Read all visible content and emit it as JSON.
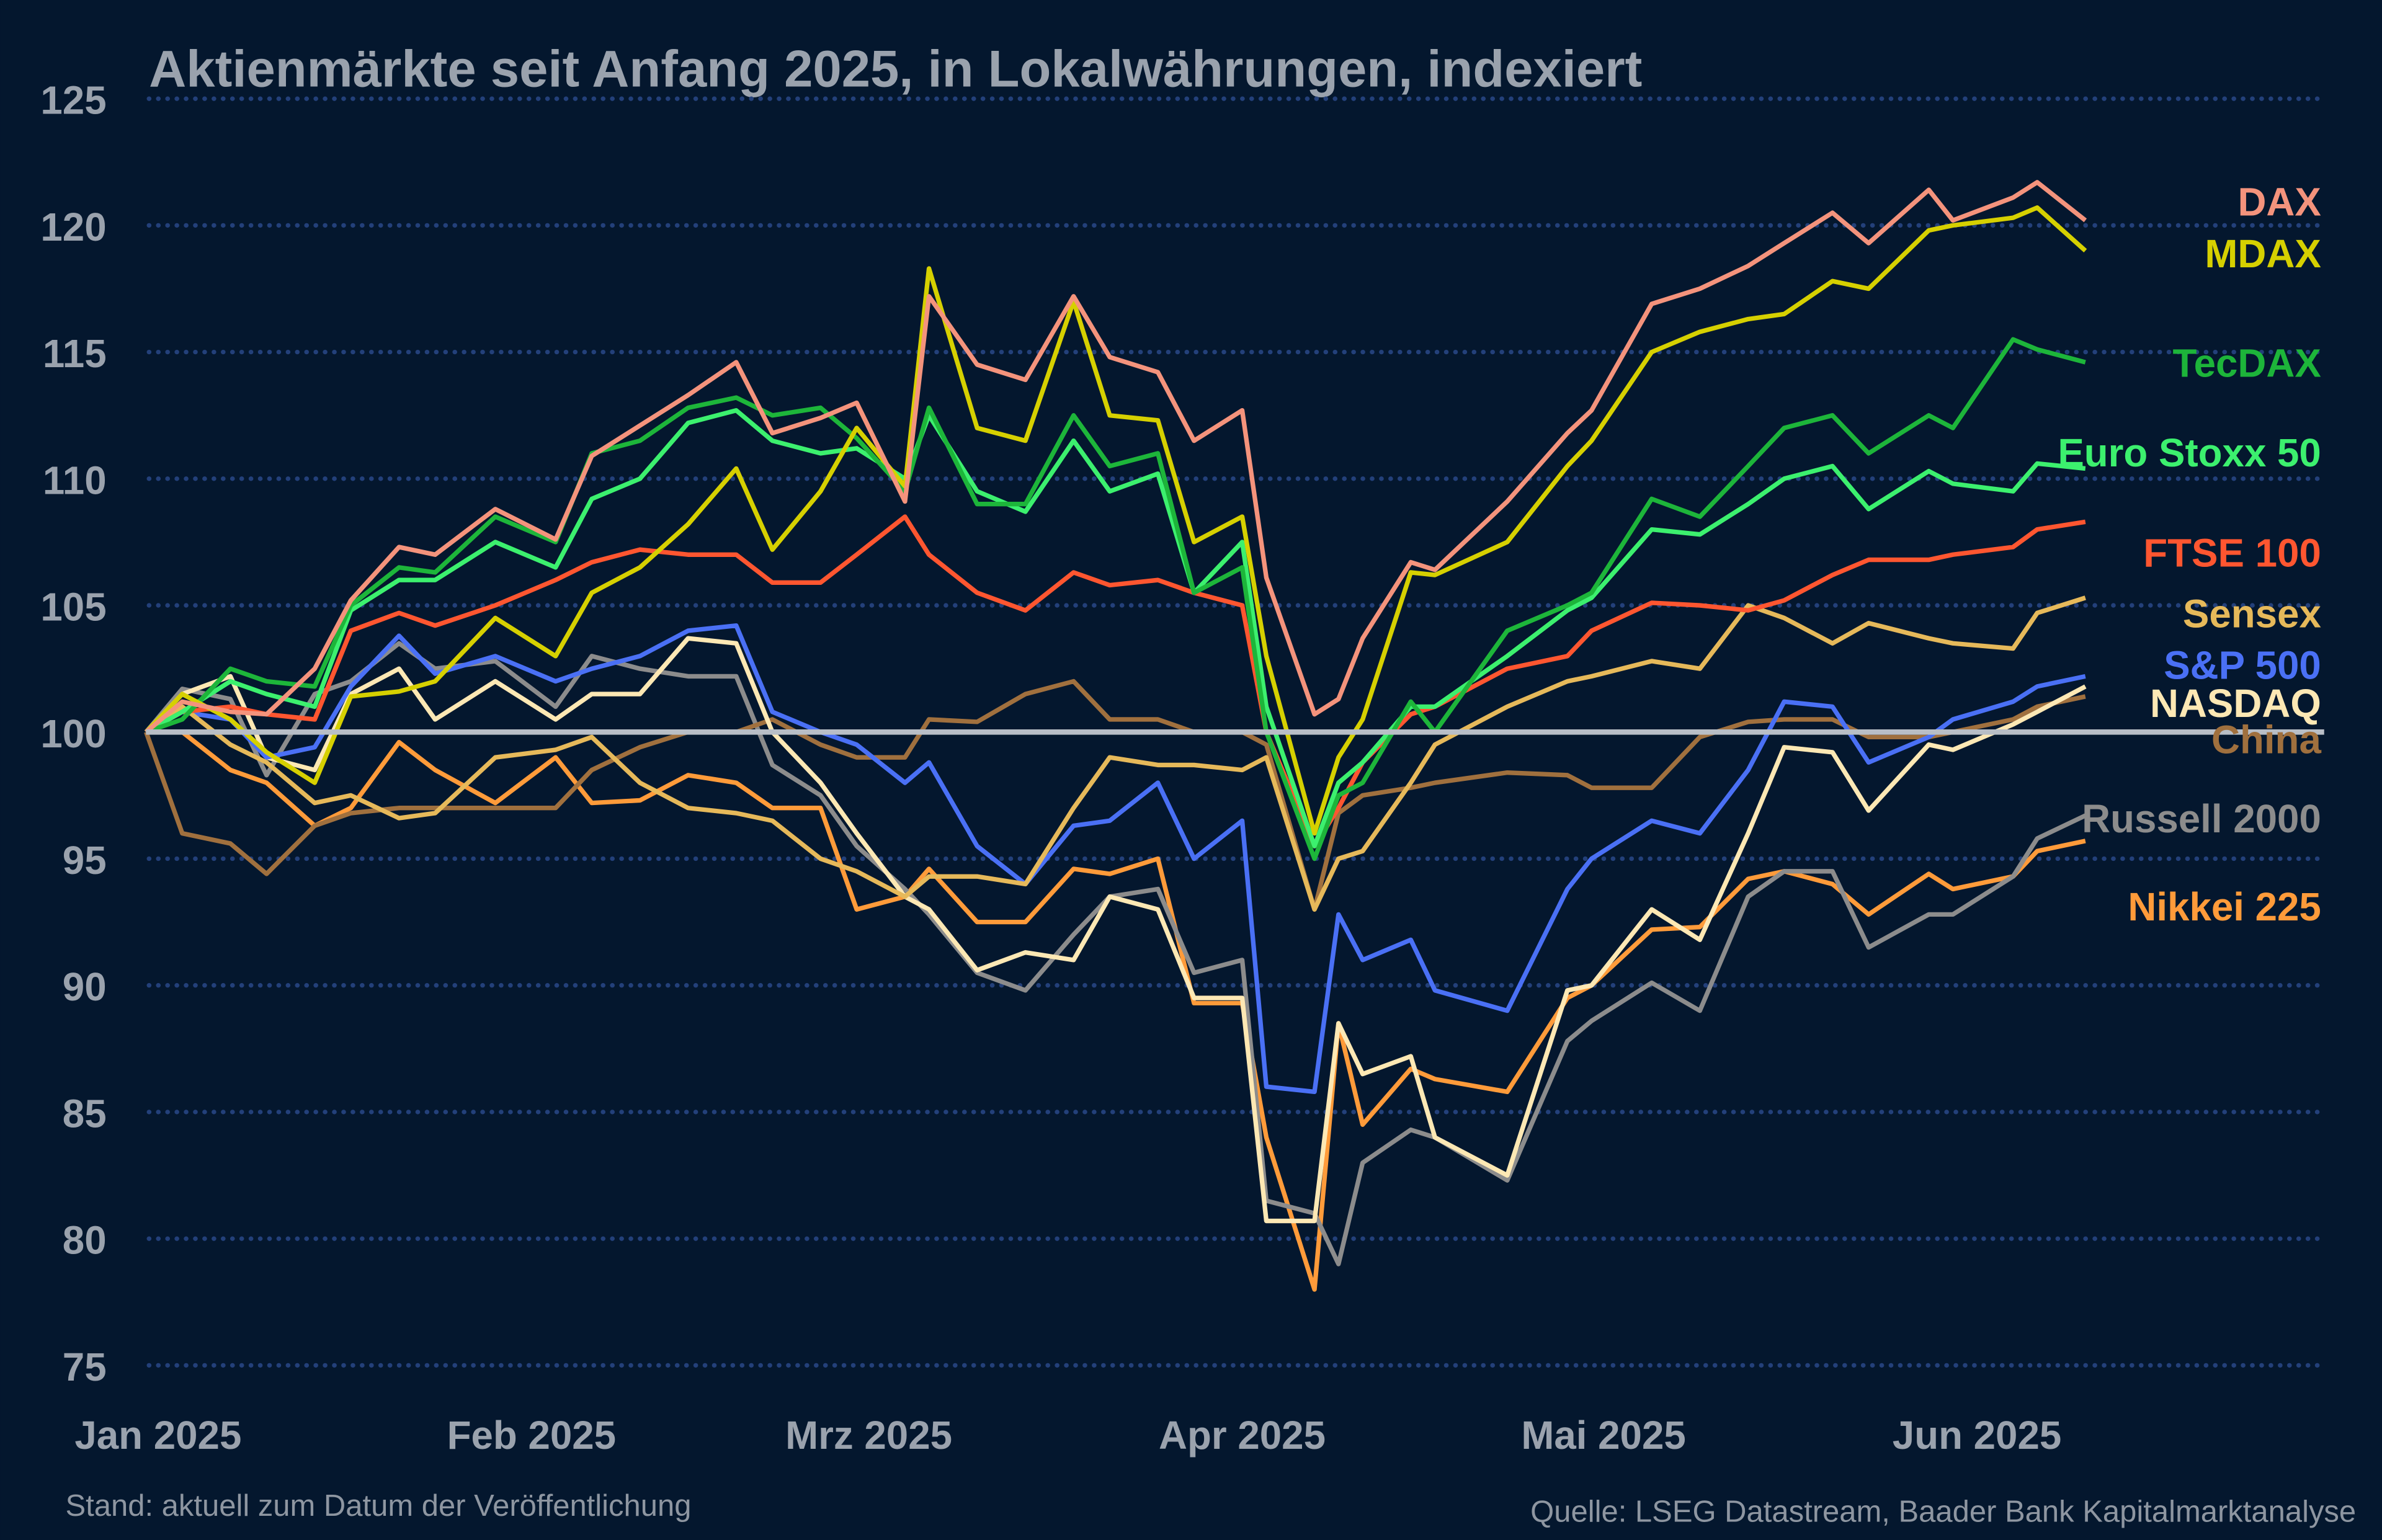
{
  "chart_data": {
    "type": "line",
    "title": "Aktienmärkte seit Anfang 2025, in Lokalwährungen, indexiert",
    "xlabel": "",
    "ylabel": "",
    "ylim": [
      75,
      125
    ],
    "yticks": [
      125,
      120,
      115,
      110,
      105,
      100,
      95,
      90,
      85,
      80,
      75
    ],
    "xticks": [
      {
        "date": "2025-01-01",
        "label": "Jan 2025"
      },
      {
        "date": "2025-02-01",
        "label": "Feb 2025"
      },
      {
        "date": "2025-03-01",
        "label": "Mrz 2025"
      },
      {
        "date": "2025-04-01",
        "label": "Apr 2025"
      },
      {
        "date": "2025-05-01",
        "label": "Mai 2025"
      },
      {
        "date": "2025-06-01",
        "label": "Jun 2025"
      }
    ],
    "grid": "horizontal dotted",
    "baseline": 100,
    "legend": "direct labels at right end",
    "x": [
      "2024-12-31",
      "2025-01-03",
      "2025-01-07",
      "2025-01-10",
      "2025-01-14",
      "2025-01-17",
      "2025-01-21",
      "2025-01-24",
      "2025-01-29",
      "2025-02-03",
      "2025-02-06",
      "2025-02-10",
      "2025-02-14",
      "2025-02-18",
      "2025-02-21",
      "2025-02-25",
      "2025-02-28",
      "2025-03-04",
      "2025-03-06",
      "2025-03-10",
      "2025-03-14",
      "2025-03-18",
      "2025-03-21",
      "2025-03-25",
      "2025-03-28",
      "2025-04-01",
      "2025-04-03",
      "2025-04-07",
      "2025-04-09",
      "2025-04-11",
      "2025-04-15",
      "2025-04-17",
      "2025-04-23",
      "2025-04-28",
      "2025-04-30",
      "2025-05-05",
      "2025-05-09",
      "2025-05-13",
      "2025-05-16",
      "2025-05-20",
      "2025-05-23",
      "2025-05-28",
      "2025-05-30",
      "2025-06-04",
      "2025-06-06",
      "2025-06-10"
    ],
    "series": [
      {
        "name": "DAX",
        "color": "#f4937c",
        "values": [
          100,
          101.2,
          100.8,
          100.7,
          102.5,
          105.2,
          107.3,
          107,
          108.8,
          107.6,
          110.9,
          112.1,
          113.3,
          114.6,
          111.8,
          112.4,
          113,
          109.1,
          117.2,
          114.5,
          113.9,
          117.2,
          114.8,
          114.2,
          111.5,
          112.7,
          106.1,
          100.7,
          101.3,
          103.7,
          106.7,
          106.4,
          109.1,
          111.8,
          112.7,
          116.9,
          117.5,
          118.4,
          119.3,
          120.5,
          119.3,
          121.4,
          120.2,
          121.1,
          121.7,
          120.2
        ]
      },
      {
        "name": "MDAX",
        "color": "#d6d000",
        "values": [
          100,
          101.5,
          100.5,
          99.2,
          98,
          101.4,
          101.6,
          102,
          104.5,
          103,
          105.5,
          106.5,
          108.2,
          110.4,
          107.2,
          109.5,
          112,
          109.7,
          118.3,
          112,
          111.5,
          117,
          112.5,
          112.3,
          107.5,
          108.5,
          103,
          96,
          99,
          100.5,
          106.3,
          106.2,
          107.5,
          110.5,
          111.5,
          115,
          115.8,
          116.3,
          116.5,
          117.8,
          117.5,
          119.8,
          120,
          120.3,
          120.7,
          119
        ]
      },
      {
        "name": "TecDAX",
        "color": "#1db53a",
        "values": [
          100,
          100.5,
          102.5,
          102,
          101.8,
          105,
          106.5,
          106.3,
          108.5,
          107.5,
          111,
          111.5,
          112.8,
          113.2,
          112.5,
          112.8,
          111.6,
          109.5,
          112.8,
          109,
          109,
          112.5,
          110.5,
          111,
          105.5,
          106.5,
          100,
          95,
          97.5,
          98,
          101.2,
          100,
          104,
          105,
          105.5,
          109.2,
          108.5,
          110.5,
          112,
          112.5,
          111,
          112.5,
          112,
          115.5,
          115.1,
          114.6
        ]
      },
      {
        "name": "Euro Stoxx 50",
        "color": "#3cf06e",
        "values": [
          100,
          100.8,
          102,
          101.5,
          101,
          104.8,
          106,
          106,
          107.5,
          106.5,
          109.2,
          110,
          112.2,
          112.7,
          111.5,
          111,
          111.2,
          110,
          112.5,
          109.5,
          108.7,
          111.5,
          109.5,
          110.2,
          105.5,
          107.5,
          101,
          95.5,
          98,
          98.8,
          101,
          101,
          103,
          104.8,
          105.3,
          108,
          107.8,
          109,
          110,
          110.5,
          108.8,
          110.3,
          109.8,
          109.5,
          110.6,
          110.4
        ]
      },
      {
        "name": "FTSE 100",
        "color": "#ff5630",
        "values": [
          100,
          100.8,
          101,
          100.7,
          100.5,
          104,
          104.7,
          104.2,
          105,
          106,
          106.7,
          107.2,
          107,
          107,
          105.9,
          105.9,
          107,
          108.5,
          107,
          105.5,
          104.8,
          106.3,
          105.8,
          106,
          105.5,
          105,
          100,
          95.5,
          97,
          98.8,
          100.7,
          101,
          102.5,
          103,
          104,
          105.1,
          105,
          104.8,
          105.2,
          106.2,
          106.8,
          106.8,
          107,
          107.3,
          108,
          108.3
        ]
      },
      {
        "name": "Sensex",
        "color": "#e6b95a",
        "values": [
          100,
          101,
          99.5,
          98.8,
          97.2,
          97.5,
          96.6,
          96.8,
          99,
          99.3,
          99.8,
          98,
          97,
          96.8,
          96.5,
          95,
          94.5,
          93.5,
          94.3,
          94.3,
          94,
          97,
          99,
          98.7,
          98.7,
          98.5,
          99,
          93,
          95,
          95.3,
          98,
          99.5,
          101,
          102,
          102.2,
          102.8,
          102.5,
          105,
          104.5,
          103.5,
          104.3,
          103.7,
          103.5,
          103.3,
          104.7,
          105.3
        ]
      },
      {
        "name": "S&P 500",
        "color": "#4a70f5",
        "values": [
          100,
          100.8,
          100.5,
          99,
          99.4,
          101.8,
          103.8,
          102.3,
          103,
          102,
          102.5,
          103,
          104,
          104.2,
          100.8,
          100,
          99.5,
          98,
          98.8,
          95.5,
          94,
          96.3,
          96.5,
          98,
          95,
          96.5,
          86,
          85.8,
          92.8,
          91,
          91.8,
          89.8,
          89,
          93.8,
          95,
          96.5,
          96,
          98.5,
          101.2,
          101,
          98.8,
          99.8,
          100.5,
          101.2,
          101.8,
          102.2
        ]
      },
      {
        "name": "NASDAQ",
        "color": "#fde8b4",
        "values": [
          100,
          101.5,
          102.2,
          99,
          98.5,
          101.5,
          102.5,
          100.5,
          102,
          100.5,
          101.5,
          101.5,
          103.7,
          103.5,
          100,
          98,
          96,
          93.5,
          93,
          90.6,
          91.3,
          91,
          93.5,
          93,
          89.5,
          89.5,
          80.7,
          80.7,
          88.5,
          86.5,
          87.2,
          84,
          82.5,
          89.8,
          90,
          93,
          91.8,
          96,
          99.4,
          99.2,
          96.9,
          99.5,
          99.3,
          100.3,
          100.8,
          101.8
        ]
      },
      {
        "name": "China",
        "color": "#a0703e",
        "values": [
          100,
          96,
          95.6,
          94.4,
          96.3,
          96.8,
          97,
          97,
          97,
          97,
          98.5,
          99.4,
          100,
          100,
          100.5,
          99.5,
          99,
          99,
          100.5,
          100.4,
          101.5,
          102,
          100.5,
          100.5,
          100,
          100,
          99.5,
          93,
          96.8,
          97.5,
          97.8,
          98,
          98.4,
          98.3,
          97.8,
          97.8,
          99.8,
          100.4,
          100.5,
          100.5,
          99.8,
          99.8,
          100,
          100.5,
          101,
          101.4
        ]
      },
      {
        "name": "Russell 2000",
        "color": "#8c8c8c",
        "values": [
          100,
          101.7,
          101.3,
          98.3,
          101.5,
          102,
          103.5,
          102.5,
          102.8,
          101,
          103,
          102.5,
          102.2,
          102.2,
          98.7,
          97.5,
          95.5,
          93.8,
          92.8,
          90.5,
          89.8,
          92,
          93.5,
          93.8,
          90.5,
          91,
          81.5,
          81,
          79,
          83,
          84.3,
          84,
          82.3,
          87.8,
          88.6,
          90.1,
          89,
          93.5,
          94.5,
          94.5,
          91.5,
          92.8,
          92.8,
          94.3,
          95.8,
          96.7
        ]
      },
      {
        "name": "Nikkei 225",
        "color": "#ff9b3a",
        "values": [
          100,
          100,
          98.5,
          98,
          96.3,
          97,
          99.6,
          98.5,
          97.2,
          99,
          97.2,
          97.3,
          98.3,
          98,
          97,
          97,
          93,
          93.5,
          94.6,
          92.5,
          92.5,
          94.6,
          94.4,
          95,
          89.3,
          89.3,
          84,
          78,
          88.5,
          84.5,
          86.7,
          86.3,
          85.8,
          89.5,
          90,
          92.2,
          92.3,
          94.2,
          94.5,
          94,
          92.8,
          94.4,
          93.8,
          94.3,
          95.3,
          95.7
        ]
      }
    ]
  },
  "footer": {
    "left": "Stand: aktuell zum Datum der Veröffentlichung",
    "right": "Quelle: LSEG Datastream, Baader Bank Kapitalmarktanalyse"
  },
  "colors": {
    "background": "#04172e",
    "grid": "#23407a",
    "baseline": "#b8bec6",
    "text": "#9aa2ad"
  }
}
